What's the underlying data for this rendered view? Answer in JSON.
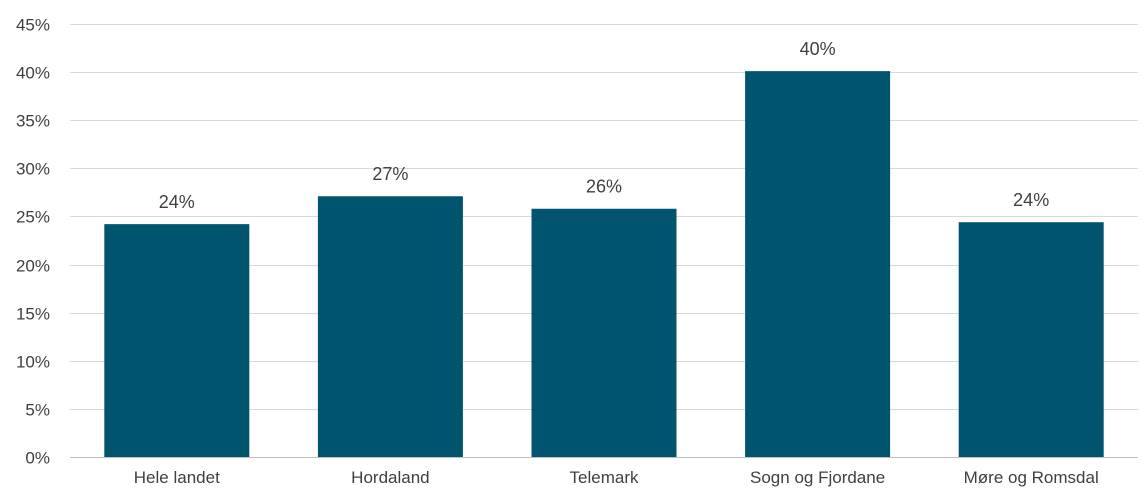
{
  "chart_data": {
    "type": "bar",
    "categories": [
      "Hele landet",
      "Hordaland",
      "Telemark",
      "Sogn og Fjordane",
      "Møre og Romsdal"
    ],
    "values": [
      24.2,
      27.1,
      25.8,
      40.1,
      24.4
    ],
    "data_labels": [
      "24%",
      "27%",
      "26%",
      "40%",
      "24%"
    ],
    "title": "",
    "xlabel": "",
    "ylabel": "",
    "ylim": [
      0,
      45
    ],
    "y_ticks": [
      0,
      5,
      10,
      15,
      20,
      25,
      30,
      35,
      40,
      45
    ],
    "y_tick_labels": [
      "0%",
      "5%",
      "10%",
      "15%",
      "20%",
      "25%",
      "30%",
      "35%",
      "40%",
      "45%"
    ],
    "grid": true,
    "legend": "none",
    "bar_color": "#00546e"
  }
}
